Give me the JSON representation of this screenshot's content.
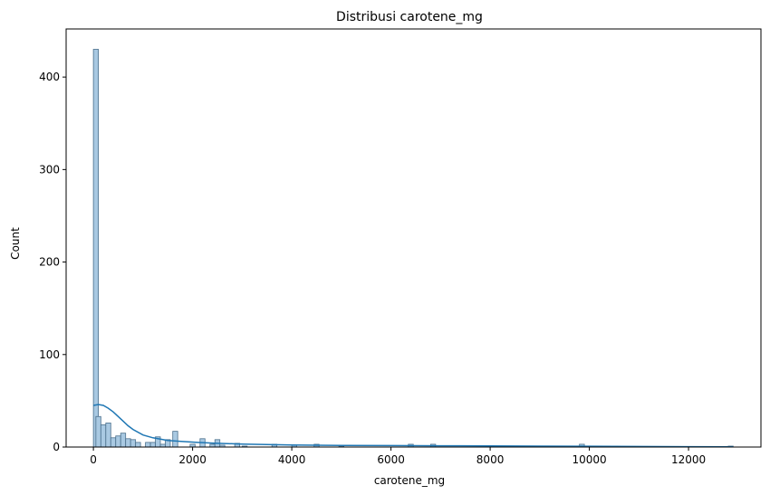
{
  "chart_data": {
    "type": "bar",
    "title": "Distribusi carotene_mg",
    "xlabel": "carotene_mg",
    "ylabel": "Count",
    "xlim": [
      -550,
      13460
    ],
    "ylim": [
      0,
      452
    ],
    "xticks": [
      0,
      2000,
      4000,
      6000,
      8000,
      10000,
      12000
    ],
    "yticks": [
      0,
      100,
      200,
      300,
      400
    ],
    "bin_width": 100,
    "bars": [
      {
        "x0": 0,
        "count": 430
      },
      {
        "x0": 50,
        "count": 33
      },
      {
        "x0": 150,
        "count": 24
      },
      {
        "x0": 250,
        "count": 26
      },
      {
        "x0": 350,
        "count": 10
      },
      {
        "x0": 450,
        "count": 12
      },
      {
        "x0": 550,
        "count": 15
      },
      {
        "x0": 650,
        "count": 9
      },
      {
        "x0": 750,
        "count": 8
      },
      {
        "x0": 850,
        "count": 5
      },
      {
        "x0": 1050,
        "count": 5
      },
      {
        "x0": 1150,
        "count": 5
      },
      {
        "x0": 1250,
        "count": 11
      },
      {
        "x0": 1350,
        "count": 3
      },
      {
        "x0": 1450,
        "count": 8
      },
      {
        "x0": 1600,
        "count": 17
      },
      {
        "x0": 1950,
        "count": 3
      },
      {
        "x0": 2150,
        "count": 9
      },
      {
        "x0": 2350,
        "count": 3
      },
      {
        "x0": 2450,
        "count": 8
      },
      {
        "x0": 2550,
        "count": 2
      },
      {
        "x0": 2850,
        "count": 4
      },
      {
        "x0": 3000,
        "count": 1
      },
      {
        "x0": 3600,
        "count": 3
      },
      {
        "x0": 4000,
        "count": 2
      },
      {
        "x0": 4450,
        "count": 3
      },
      {
        "x0": 4950,
        "count": 1
      },
      {
        "x0": 6350,
        "count": 3
      },
      {
        "x0": 6800,
        "count": 3
      },
      {
        "x0": 8700,
        "count": 1
      },
      {
        "x0": 9000,
        "count": 1
      },
      {
        "x0": 9800,
        "count": 3
      },
      {
        "x0": 12800,
        "count": 1
      }
    ],
    "kde": {
      "x": [
        0,
        100,
        200,
        300,
        400,
        500,
        600,
        700,
        800,
        1000,
        1200,
        1500,
        1800,
        2100,
        2500,
        3000,
        3500,
        4000,
        5000,
        6000,
        7000,
        8000,
        9000,
        10000,
        11000,
        12000,
        12900
      ],
      "y": [
        45,
        46,
        45,
        42,
        38,
        33,
        28,
        23,
        19,
        13,
        10,
        7,
        6,
        5,
        4,
        3.2,
        2.6,
        2.2,
        1.8,
        1.6,
        1.4,
        1.2,
        1.0,
        0.9,
        0.6,
        0.4,
        0.3
      ]
    },
    "colors": {
      "bar_fill": "#a9c9e2",
      "bar_edge": "#4a6f8c",
      "kde_line": "#1f77b4"
    },
    "grid": false
  }
}
